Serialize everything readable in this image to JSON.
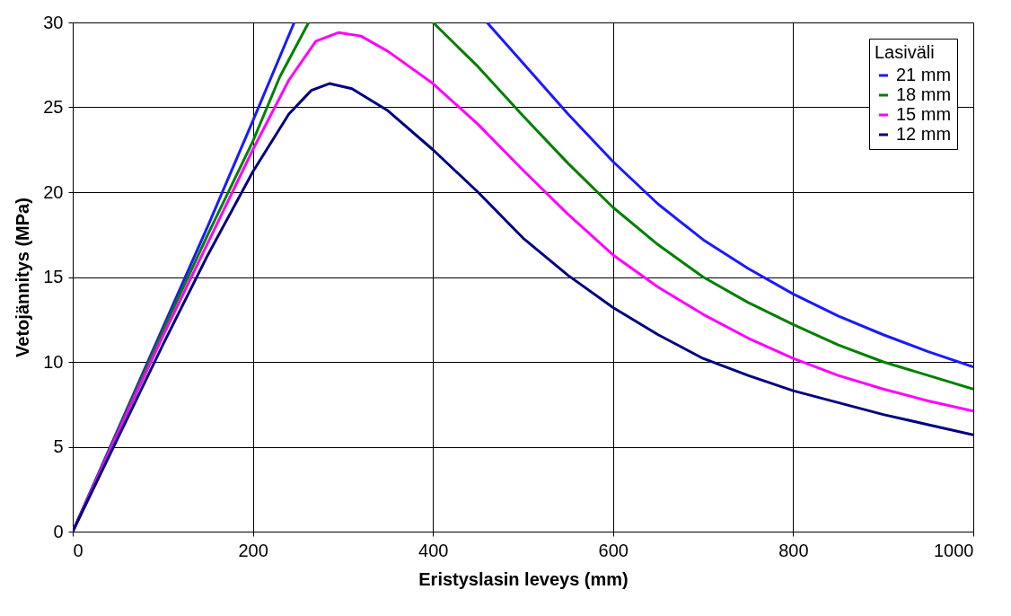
{
  "chart_data": {
    "type": "line",
    "xlabel": "Eristyslasin leveys (mm)",
    "ylabel": "Vetojännitys (MPa)",
    "legend_title": "Lasiväli",
    "legend": "top right",
    "grid": true,
    "marker": "none",
    "line_style": "solid",
    "xlim": [
      0,
      1000
    ],
    "xticks": [
      0,
      200,
      400,
      600,
      800,
      1000
    ],
    "ylim": [
      0,
      30
    ],
    "yticks": [
      0,
      5,
      10,
      15,
      20,
      25,
      30
    ],
    "series": [
      {
        "name": "21 mm",
        "color": "#1a1aff",
        "x": [
          0,
          50,
          100,
          150,
          200,
          246,
          350,
          460,
          500,
          550,
          600,
          650,
          700,
          750,
          800,
          850,
          900,
          950,
          1000
        ],
        "values": [
          0,
          6,
          12,
          18,
          24.2,
          30,
          null,
          30,
          27.6,
          24.6,
          21.8,
          19.3,
          17.2,
          15.5,
          14.0,
          12.7,
          11.6,
          10.6,
          9.7
        ]
      },
      {
        "name": "18 mm",
        "color": "#008000",
        "x": [
          0,
          50,
          100,
          150,
          200,
          230,
          262,
          330,
          400,
          450,
          500,
          550,
          600,
          650,
          700,
          750,
          800,
          850,
          900,
          950,
          1000
        ],
        "values": [
          0,
          5.9,
          11.8,
          17.5,
          23,
          26.8,
          30,
          null,
          30,
          27.4,
          24.5,
          21.7,
          19.1,
          16.9,
          15.0,
          13.5,
          12.2,
          11.0,
          10.0,
          9.2,
          8.4
        ]
      },
      {
        "name": "15 mm",
        "color": "#ff00ff",
        "x": [
          0,
          50,
          100,
          150,
          200,
          240,
          270,
          295,
          320,
          350,
          400,
          450,
          500,
          550,
          600,
          650,
          700,
          750,
          800,
          850,
          900,
          950,
          1000
        ],
        "values": [
          0,
          5.8,
          11.5,
          17,
          22.5,
          26.6,
          28.9,
          29.4,
          29.2,
          28.3,
          26.4,
          24,
          21.3,
          18.7,
          16.3,
          14.4,
          12.8,
          11.4,
          10.2,
          9.2,
          8.4,
          7.7,
          7.1
        ]
      },
      {
        "name": "12 mm",
        "color": "#000080",
        "x": [
          0,
          50,
          100,
          150,
          200,
          240,
          265,
          285,
          310,
          350,
          400,
          450,
          500,
          550,
          600,
          650,
          700,
          750,
          800,
          850,
          900,
          950,
          1000
        ],
        "values": [
          0,
          5.5,
          11,
          16.3,
          21.2,
          24.6,
          26.0,
          26.4,
          26.1,
          24.8,
          22.5,
          20.0,
          17.3,
          15.1,
          13.2,
          11.6,
          10.2,
          9.2,
          8.3,
          7.6,
          6.9,
          6.3,
          5.7
        ]
      }
    ]
  }
}
